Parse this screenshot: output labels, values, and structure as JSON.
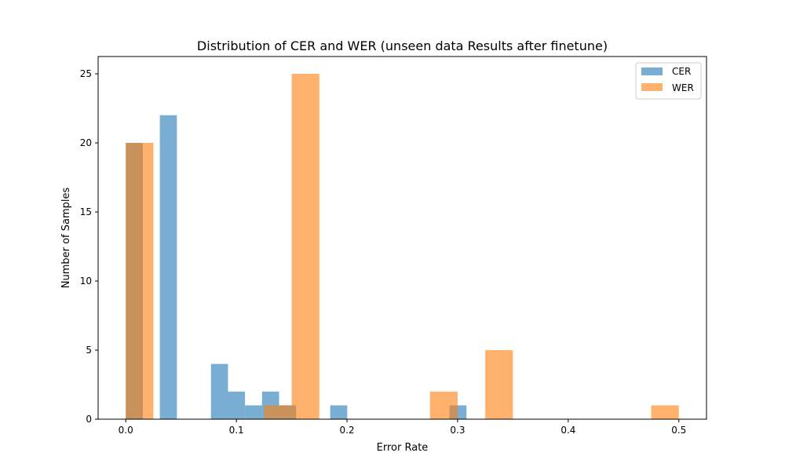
{
  "chart_data": {
    "type": "bar",
    "title": "Distribution of CER and WER (unseen data Results after finetune)",
    "xlabel": "Error Rate",
    "ylabel": "Number of Samples",
    "xlim": [
      -0.025,
      0.525
    ],
    "ylim": [
      0,
      26.25
    ],
    "xticks": [
      0.0,
      0.1,
      0.2,
      0.3,
      0.4,
      0.5
    ],
    "xtick_labels": [
      "0.0",
      "0.1",
      "0.2",
      "0.3",
      "0.4",
      "0.5"
    ],
    "yticks": [
      0,
      5,
      10,
      15,
      20,
      25
    ],
    "ytick_labels": [
      "0",
      "5",
      "10",
      "15",
      "20",
      "25"
    ],
    "grid": false,
    "legend_position": "top-right",
    "series": [
      {
        "name": "CER",
        "color": "#1f77b4",
        "opacity": 0.6,
        "bins": [
          {
            "x0": 0.0,
            "x1": 0.0154,
            "count": 20
          },
          {
            "x0": 0.0308,
            "x1": 0.0462,
            "count": 22
          },
          {
            "x0": 0.077,
            "x1": 0.0924,
            "count": 4
          },
          {
            "x0": 0.0924,
            "x1": 0.1078,
            "count": 2
          },
          {
            "x0": 0.1078,
            "x1": 0.1232,
            "count": 1
          },
          {
            "x0": 0.1232,
            "x1": 0.1386,
            "count": 2
          },
          {
            "x0": 0.1386,
            "x1": 0.154,
            "count": 1
          },
          {
            "x0": 0.1848,
            "x1": 0.2002,
            "count": 1
          },
          {
            "x0": 0.2926,
            "x1": 0.308,
            "count": 1
          }
        ]
      },
      {
        "name": "WER",
        "color": "#ff7f0e",
        "opacity": 0.6,
        "bins": [
          {
            "x0": 0.0,
            "x1": 0.025,
            "count": 20
          },
          {
            "x0": 0.125,
            "x1": 0.15,
            "count": 1
          },
          {
            "x0": 0.15,
            "x1": 0.175,
            "count": 25
          },
          {
            "x0": 0.275,
            "x1": 0.3,
            "count": 2
          },
          {
            "x0": 0.325,
            "x1": 0.35,
            "count": 5
          },
          {
            "x0": 0.475,
            "x1": 0.5,
            "count": 1
          }
        ]
      }
    ]
  }
}
